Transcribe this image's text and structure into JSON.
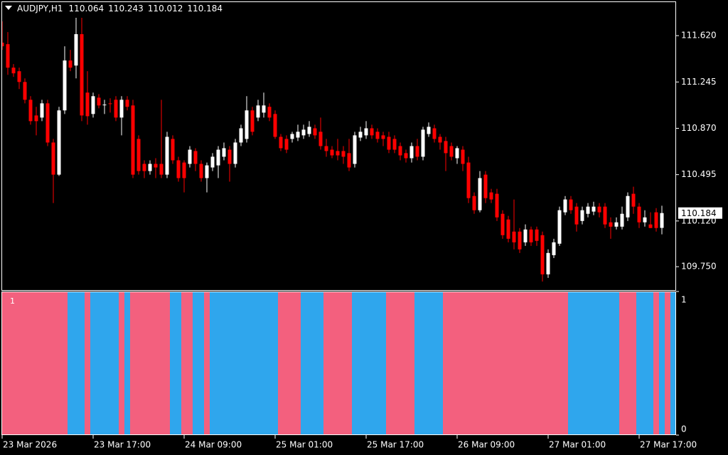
{
  "chart_data": [
    {
      "type": "candlestick",
      "title": "AUDJPY,H1",
      "up_color": "#ffffff",
      "down_color": "#ff0000",
      "ylim": [
        109.555,
        111.897
      ],
      "yticks": [
        {
          "value": 109.75,
          "label": "109.750"
        },
        {
          "value": 110.12,
          "label": "110.120"
        },
        110.495,
        {
          "value": 110.87,
          "label": "110.870"
        },
        111.245,
        {
          "value": 111.62,
          "label": "111.620"
        }
      ],
      "categories": [
        "23 Mar 2026",
        null,
        null,
        null,
        null,
        null,
        null,
        null,
        null,
        null,
        null,
        null,
        null,
        null,
        null,
        null,
        "23 Mar 17:00",
        null,
        null,
        null,
        null,
        null,
        null,
        null,
        null,
        null,
        null,
        null,
        null,
        null,
        null,
        null,
        "24 Mar 09:00",
        null,
        null,
        null,
        null,
        null,
        null,
        null,
        null,
        null,
        null,
        null,
        null,
        null,
        null,
        null,
        "25 Mar 01:00",
        null,
        null,
        null,
        null,
        null,
        null,
        null,
        null,
        null,
        null,
        null,
        null,
        null,
        null,
        null,
        "25 Mar 17:00",
        null,
        null,
        null,
        null,
        null,
        null,
        null,
        null,
        null,
        null,
        null,
        null,
        null,
        null,
        null,
        "26 Mar 09:00",
        null,
        null,
        null,
        null,
        null,
        null,
        null,
        null,
        null,
        null,
        null,
        null,
        null,
        null,
        null,
        "27 Mar 01:00",
        null,
        null,
        null,
        null,
        null,
        null,
        null,
        null,
        null,
        null,
        null,
        null,
        null,
        null,
        null,
        "27 Mar 17:00",
        null,
        null,
        null,
        null
      ],
      "open": [
        111.563,
        111.551,
        111.361,
        111.332,
        111.245,
        111.101,
        110.974,
        110.957,
        111.072,
        110.755,
        110.495,
        111.015,
        111.419,
        111.378,
        111.632,
        111.159,
        110.986,
        111.118,
        111.06,
        111.072,
        111.101,
        110.957,
        111.101,
        111.055,
        110.784,
        110.582,
        110.524,
        110.582,
        110.582,
        110.495,
        110.784,
        110.611,
        110.593,
        110.582,
        110.686,
        110.582,
        110.467,
        110.553,
        110.57,
        110.64,
        110.697,
        110.582,
        110.755,
        110.784,
        111.015,
        110.957,
        110.997,
        111.044,
        110.986,
        110.801,
        110.784,
        110.784,
        110.795,
        110.813,
        110.824,
        110.87,
        110.842,
        110.726,
        110.697,
        110.686,
        110.686,
        110.669,
        110.582,
        110.795,
        110.813,
        110.87,
        110.842,
        110.813,
        110.801,
        110.784,
        110.726,
        110.669,
        110.628,
        110.726,
        110.64,
        110.824,
        110.87,
        110.801,
        110.767,
        110.726,
        110.628,
        110.697,
        110.593,
        110.322,
        110.207,
        110.495,
        110.351,
        110.34,
        110.178,
        110.132,
        110.034,
        110.034,
        109.947,
        110.051,
        110.051,
        110.005,
        109.688,
        109.843,
        109.936,
        110.19,
        110.294,
        110.236,
        110.12,
        110.178,
        110.196,
        110.236,
        110.236,
        110.109,
        110.074,
        110.074,
        110.149,
        110.34,
        110.236,
        110.109,
        110.092,
        110.19,
        110.064
      ],
      "high": [
        111.736,
        111.649,
        111.39,
        111.361,
        111.274,
        111.13,
        111.044,
        111.101,
        111.101,
        110.784,
        111.044,
        111.534,
        111.505,
        111.765,
        111.765,
        111.332,
        111.159,
        111.147,
        111.101,
        111.113,
        111.13,
        111.13,
        111.13,
        111.101,
        110.813,
        110.611,
        110.611,
        110.628,
        111.101,
        110.842,
        110.813,
        110.64,
        110.611,
        110.726,
        110.709,
        110.611,
        110.593,
        110.669,
        110.726,
        110.755,
        110.726,
        110.784,
        110.899,
        111.13,
        111.044,
        111.101,
        111.159,
        111.072,
        111.015,
        110.824,
        110.813,
        110.842,
        110.899,
        110.899,
        110.928,
        110.899,
        110.957,
        110.784,
        110.726,
        110.784,
        110.726,
        110.784,
        110.842,
        110.882,
        110.928,
        110.899,
        110.87,
        110.842,
        110.842,
        110.813,
        110.755,
        110.697,
        110.755,
        110.784,
        110.882,
        110.917,
        110.899,
        110.824,
        110.801,
        110.755,
        110.726,
        110.726,
        110.64,
        110.351,
        110.524,
        110.524,
        110.38,
        110.38,
        110.207,
        110.161,
        110.294,
        110.063,
        110.092,
        110.074,
        110.074,
        110.034,
        109.89,
        109.976,
        110.236,
        110.322,
        110.322,
        110.265,
        110.236,
        110.265,
        110.276,
        110.265,
        110.265,
        110.149,
        110.149,
        110.236,
        110.351,
        110.397,
        110.265,
        110.207,
        110.19,
        110.224,
        110.243
      ],
      "low": [
        111.505,
        111.303,
        111.286,
        111.188,
        111.072,
        110.899,
        110.813,
        110.928,
        110.726,
        110.265,
        110.484,
        110.986,
        111.332,
        111.274,
        110.928,
        110.899,
        110.957,
        111.032,
        110.986,
        110.997,
        110.928,
        110.813,
        111.015,
        110.467,
        110.495,
        110.467,
        110.495,
        110.467,
        110.467,
        110.467,
        110.582,
        110.438,
        110.351,
        110.553,
        110.524,
        110.438,
        110.351,
        110.524,
        110.467,
        110.611,
        110.438,
        110.553,
        110.726,
        110.755,
        110.813,
        110.928,
        110.957,
        110.928,
        110.784,
        110.686,
        110.669,
        110.755,
        110.767,
        110.784,
        110.801,
        110.784,
        110.697,
        110.64,
        110.628,
        110.611,
        110.582,
        110.524,
        110.553,
        110.767,
        110.784,
        110.784,
        110.755,
        110.726,
        110.669,
        110.669,
        110.611,
        110.593,
        110.593,
        110.611,
        110.611,
        110.801,
        110.755,
        110.697,
        110.524,
        110.611,
        110.582,
        110.524,
        110.265,
        110.178,
        110.19,
        110.265,
        110.265,
        110.12,
        109.976,
        109.947,
        109.89,
        109.861,
        109.918,
        109.918,
        109.918,
        109.63,
        109.659,
        109.82,
        109.918,
        110.167,
        110.178,
        110.034,
        110.092,
        110.149,
        110.167,
        110.149,
        110.063,
        109.976,
        110.051,
        110.051,
        110.12,
        110.178,
        110.063,
        110.074,
        110.063,
        110.034,
        110.012
      ],
      "close": [
        111.534,
        111.361,
        111.315,
        111.245,
        111.101,
        110.928,
        110.928,
        111.072,
        110.755,
        110.495,
        111.015,
        111.419,
        111.361,
        111.632,
        110.974,
        110.968,
        111.13,
        111.055,
        111.062,
        111.067,
        110.957,
        111.101,
        111.044,
        110.495,
        110.524,
        110.524,
        110.582,
        110.553,
        110.495,
        110.801,
        110.611,
        110.467,
        110.467,
        110.697,
        110.582,
        110.467,
        110.57,
        110.64,
        110.697,
        110.709,
        110.582,
        110.755,
        110.87,
        111.015,
        110.842,
        111.055,
        111.055,
        110.957,
        110.801,
        110.709,
        110.697,
        110.824,
        110.842,
        110.859,
        110.882,
        110.813,
        110.726,
        110.686,
        110.651,
        110.651,
        110.64,
        110.553,
        110.813,
        110.842,
        110.87,
        110.813,
        110.784,
        110.784,
        110.697,
        110.697,
        110.651,
        110.628,
        110.726,
        110.64,
        110.859,
        110.882,
        110.784,
        110.755,
        110.669,
        110.64,
        110.709,
        110.582,
        110.305,
        110.207,
        110.467,
        110.305,
        110.294,
        110.149,
        110.005,
        109.976,
        109.947,
        109.89,
        110.051,
        109.947,
        109.959,
        109.688,
        109.861,
        109.947,
        110.207,
        110.294,
        110.207,
        110.092,
        110.207,
        110.236,
        110.236,
        110.19,
        110.092,
        110.074,
        110.109,
        110.178,
        110.322,
        110.236,
        110.109,
        110.149,
        110.063,
        110.063,
        110.184
      ]
    },
    {
      "type": "bar",
      "title": "1",
      "ylim": [
        0,
        1
      ],
      "yticks": [
        0,
        1
      ],
      "series": [
        {
          "color": "#f3607e",
          "values": [
            1,
            1,
            1,
            1,
            1,
            1,
            1,
            1,
            1,
            1,
            1,
            1,
            null,
            null,
            null,
            1,
            null,
            null,
            null,
            null,
            null,
            1,
            null,
            1,
            1,
            1,
            1,
            1,
            1,
            1,
            null,
            null,
            1,
            1,
            null,
            null,
            1,
            null,
            null,
            null,
            null,
            null,
            null,
            null,
            null,
            null,
            null,
            null,
            null,
            1,
            1,
            1,
            1,
            null,
            null,
            null,
            null,
            1,
            1,
            1,
            1,
            1,
            null,
            null,
            null,
            null,
            null,
            null,
            1,
            1,
            1,
            1,
            1,
            null,
            null,
            null,
            null,
            null,
            1,
            1,
            1,
            1,
            1,
            1,
            1,
            1,
            1,
            1,
            1,
            1,
            1,
            1,
            1,
            1,
            1,
            1,
            1,
            1,
            1,
            1,
            null,
            null,
            null,
            null,
            null,
            null,
            null,
            null,
            null,
            1,
            1,
            1,
            null,
            null,
            null,
            1,
            null,
            1,
            null
          ]
        },
        {
          "color": "#2fa6ed",
          "values": [
            null,
            null,
            null,
            null,
            null,
            null,
            null,
            null,
            null,
            null,
            null,
            null,
            1,
            1,
            1,
            null,
            1,
            1,
            1,
            1,
            1,
            null,
            1,
            null,
            null,
            null,
            null,
            null,
            null,
            null,
            1,
            1,
            null,
            null,
            1,
            1,
            null,
            1,
            1,
            1,
            1,
            1,
            1,
            1,
            1,
            1,
            1,
            1,
            1,
            null,
            null,
            null,
            null,
            1,
            1,
            1,
            1,
            null,
            null,
            null,
            null,
            null,
            1,
            1,
            1,
            1,
            1,
            1,
            null,
            null,
            null,
            null,
            null,
            1,
            1,
            1,
            1,
            1,
            null,
            null,
            null,
            null,
            null,
            null,
            null,
            null,
            null,
            null,
            null,
            null,
            null,
            null,
            null,
            null,
            null,
            null,
            null,
            null,
            null,
            null,
            1,
            1,
            1,
            1,
            1,
            1,
            1,
            1,
            1,
            null,
            null,
            null,
            1,
            1,
            1,
            null,
            1,
            null,
            1
          ]
        }
      ]
    }
  ]
}
